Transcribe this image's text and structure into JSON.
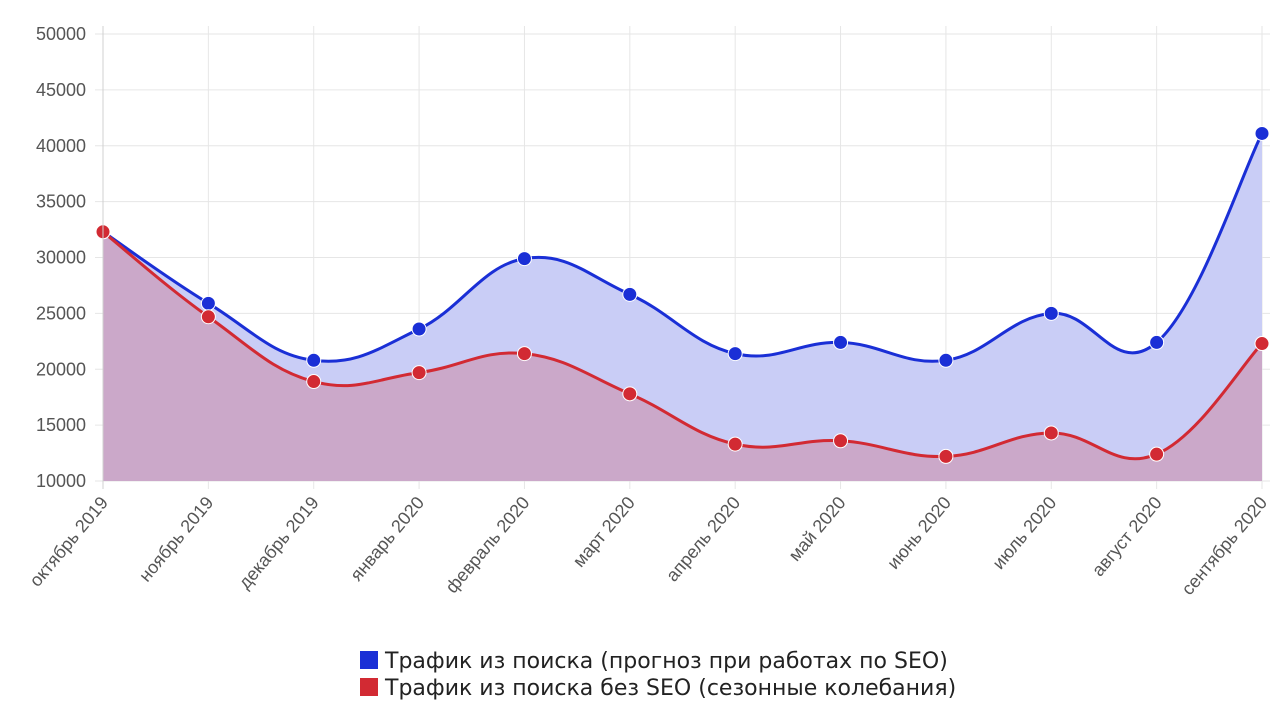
{
  "chart_data": {
    "type": "area",
    "title": "",
    "xlabel": "",
    "ylabel": "",
    "ylim": [
      10000,
      50000
    ],
    "yticks": [
      10000,
      15000,
      20000,
      25000,
      30000,
      35000,
      40000,
      45000,
      50000
    ],
    "grid": true,
    "legend_position": "bottom-center",
    "categories": [
      "октябрь 2019",
      "ноябрь 2019",
      "декабрь 2019",
      "январь 2020",
      "февраль 2020",
      "март 2020",
      "апрель 2020",
      "май 2020",
      "июнь 2020",
      "июль 2020",
      "август 2020",
      "сентябрь 2020"
    ],
    "series": [
      {
        "name": "Трафик из поиска (прогноз при работах по SEO)",
        "color": "#1a2fd6",
        "fill": "#c9cdf6",
        "values": [
          32300,
          25900,
          20800,
          23600,
          29900,
          26700,
          21400,
          22400,
          20800,
          25000,
          22400,
          41100
        ]
      },
      {
        "name": "Трафик из поиска без SEO (сезонные колебания)",
        "color": "#d22a33",
        "fill": "#cba8c9",
        "values": [
          32300,
          24700,
          18900,
          19700,
          21400,
          17800,
          13300,
          13600,
          12200,
          14300,
          12400,
          22300
        ]
      }
    ]
  }
}
